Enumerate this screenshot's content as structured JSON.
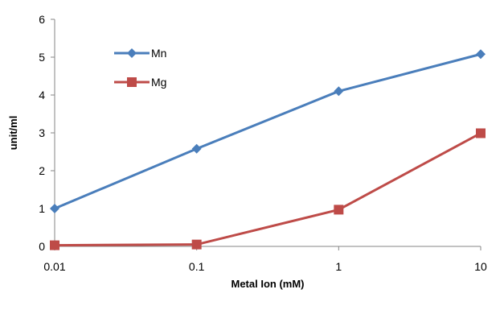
{
  "chart_data": {
    "type": "line",
    "categories": [
      "0.01",
      "0.1",
      "1",
      "10"
    ],
    "x": [
      0.01,
      0.1,
      1,
      10
    ],
    "xscale": "log",
    "xlabel": "Metal Ion (mM)",
    "ylabel": "unit/ml",
    "ylim": [
      0,
      6
    ],
    "yticks": [
      "0",
      "1",
      "2",
      "3",
      "4",
      "5",
      "6"
    ],
    "grid": false,
    "legend": "top-left",
    "series": [
      {
        "name": "Mn",
        "values": [
          1.0,
          2.58,
          4.1,
          5.08
        ],
        "color": "#4a7ebb",
        "marker": "diamond"
      },
      {
        "name": "Mg",
        "values": [
          0.03,
          0.05,
          0.97,
          2.99
        ],
        "color": "#be4b48",
        "marker": "square"
      }
    ]
  }
}
